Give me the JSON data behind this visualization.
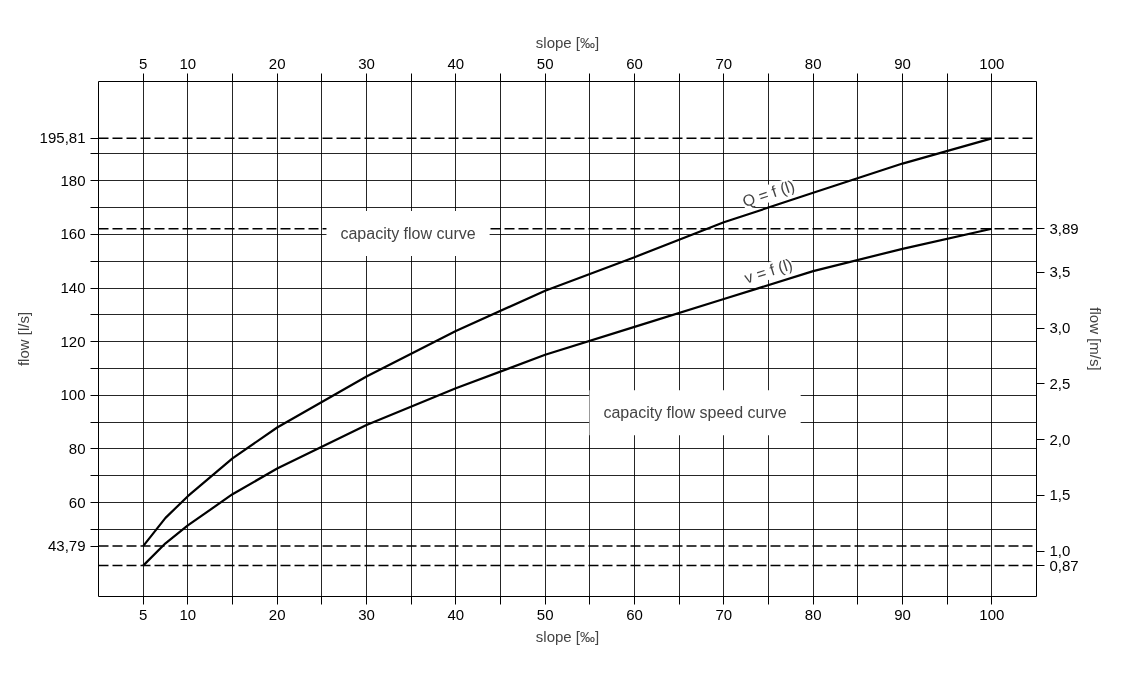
{
  "chart_data": {
    "type": "line",
    "xlabel": "slope [‰]",
    "x2label": "slope [‰]",
    "ylabel": "flow [l/s]",
    "y2label": "flow [m/s]",
    "x": [
      5,
      7.5,
      10,
      15,
      20,
      30,
      40,
      50,
      60,
      70,
      80,
      90,
      100
    ],
    "series": [
      {
        "name": "Q = f (l)",
        "color": "#000000",
        "values": [
          43.79,
          54.3,
          62.4,
          76.5,
          88,
          107,
          124,
          139,
          151.5,
          164.5,
          175.5,
          186.4,
          195.81
        ]
      },
      {
        "name": "v = f (l)",
        "color": "#000000",
        "axis": "y2",
        "values": [
          0.87,
          1.07,
          1.23,
          1.51,
          1.74,
          2.13,
          2.46,
          2.76,
          3.01,
          3.26,
          3.51,
          3.71,
          3.89
        ]
      }
    ],
    "xlim": [
      0,
      105
    ],
    "x2lim": [
      0,
      105
    ],
    "xticks": [
      5,
      10,
      {
        "value": 15,
        "label": null
      },
      20,
      {
        "value": 25,
        "label": null
      },
      30,
      {
        "value": 35,
        "label": null
      },
      40,
      {
        "value": 45,
        "label": null
      },
      50,
      {
        "value": 55,
        "label": null
      },
      60,
      {
        "value": 65,
        "label": null
      },
      70,
      {
        "value": 75,
        "label": null
      },
      80,
      {
        "value": 85,
        "label": null
      },
      90,
      {
        "value": 95,
        "label": null
      },
      100
    ],
    "x2ticks": [
      5,
      10,
      {
        "value": 15,
        "label": null
      },
      20,
      {
        "value": 25,
        "label": null
      },
      30,
      {
        "value": 35,
        "label": null
      },
      40,
      {
        "value": 45,
        "label": null
      },
      50,
      {
        "value": 55,
        "label": null
      },
      60,
      {
        "value": 65,
        "label": null
      },
      70,
      {
        "value": 75,
        "label": null
      },
      80,
      {
        "value": 85,
        "label": null
      },
      90,
      {
        "value": 95,
        "label": null
      },
      100
    ],
    "ylim": [
      25,
      217
    ],
    "yticks": [
      {
        "value": 50,
        "label": null
      },
      60,
      {
        "value": 70,
        "label": null
      },
      80,
      {
        "value": 90,
        "label": null
      },
      100,
      {
        "value": 110,
        "label": null
      },
      120,
      {
        "value": 130,
        "label": null
      },
      140,
      {
        "value": 150,
        "label": null
      },
      160,
      {
        "value": 170,
        "label": null
      },
      180,
      {
        "value": 190,
        "label": null
      }
    ],
    "y2lim": [
      0.593,
      5.21
    ],
    "y2ticks": [
      {
        "value": 1.0,
        "label": "1,0"
      },
      {
        "value": 1.5,
        "label": "1,5"
      },
      {
        "value": 2.0,
        "label": "2,0"
      },
      {
        "value": 2.5,
        "label": "2,5"
      },
      {
        "value": 3.0,
        "label": "3,0"
      },
      {
        "value": 3.5,
        "label": "3,5"
      }
    ],
    "ref_lines": [
      {
        "axis": "y",
        "value": 195.81,
        "label": "195,81",
        "line_style": "dashed"
      },
      {
        "axis": "y",
        "value": 43.79,
        "label": "43,79",
        "line_style": "dashed"
      },
      {
        "axis": "y2",
        "value": 3.89,
        "label": "3,89",
        "line_style": "dashed"
      },
      {
        "axis": "y2",
        "value": 0.87,
        "label": "0,87",
        "line_style": "dashed"
      }
    ],
    "annotations": [
      "capacity flow curve",
      "capacity flow speed curve"
    ],
    "grid": true,
    "marker": "none",
    "line_style": "solid"
  }
}
